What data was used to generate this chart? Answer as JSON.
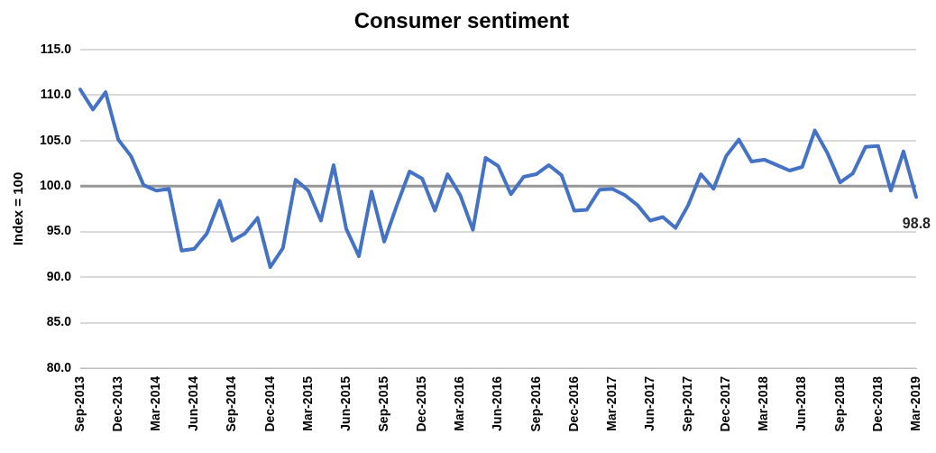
{
  "chart_data": {
    "type": "line",
    "title": "Consumer sentiment",
    "ylabel": "Index = 100",
    "categories": [
      "Sep-2013",
      null,
      null,
      "Dec-2013",
      null,
      null,
      "Mar-2014",
      null,
      null,
      "Jun-2014",
      null,
      null,
      "Sep-2014",
      null,
      null,
      "Dec-2014",
      null,
      null,
      "Mar-2015",
      null,
      null,
      "Jun-2015",
      null,
      null,
      "Sep-2015",
      null,
      null,
      "Dec-2015",
      null,
      null,
      "Mar-2016",
      null,
      null,
      "Jun-2016",
      null,
      null,
      "Sep-2016",
      null,
      null,
      "Dec-2016",
      null,
      null,
      "Mar-2017",
      null,
      null,
      "Jun-2017",
      null,
      null,
      "Sep-2017",
      null,
      null,
      "Dec-2017",
      null,
      null,
      "Mar-2018",
      null,
      null,
      "Jun-2018",
      null,
      null,
      "Sep-2018",
      null,
      null,
      "Dec-2018",
      null,
      null,
      "Mar-2019"
    ],
    "series": [
      {
        "color": "#4472c4",
        "values": [
          110.6,
          108.4,
          110.3,
          105.1,
          103.3,
          100.1,
          99.5,
          99.7,
          92.9,
          93.1,
          94.8,
          98.4,
          94.0,
          94.8,
          96.5,
          91.1,
          93.2,
          100.7,
          99.5,
          96.2,
          102.3,
          95.3,
          92.3,
          99.4,
          93.9,
          97.9,
          101.6,
          100.8,
          97.3,
          101.3,
          99.0,
          95.2,
          103.1,
          102.2,
          99.1,
          101.0,
          101.3,
          102.3,
          101.2,
          97.3,
          97.4,
          99.6,
          99.7,
          99.0,
          97.9,
          96.2,
          96.6,
          95.4,
          97.9,
          101.3,
          99.7,
          103.3,
          105.1,
          102.7,
          102.9,
          102.3,
          101.7,
          102.1,
          106.1,
          103.6,
          100.4,
          101.4,
          104.3,
          104.4,
          99.5,
          103.8,
          98.8
        ],
        "value_labels": [
          null,
          null,
          null,
          null,
          null,
          null,
          null,
          null,
          null,
          null,
          null,
          null,
          null,
          null,
          null,
          null,
          null,
          null,
          null,
          null,
          null,
          null,
          null,
          null,
          null,
          null,
          null,
          null,
          null,
          null,
          null,
          null,
          null,
          null,
          null,
          null,
          null,
          null,
          null,
          null,
          null,
          null,
          null,
          null,
          null,
          null,
          null,
          null,
          null,
          null,
          null,
          null,
          null,
          null,
          null,
          null,
          null,
          null,
          null,
          null,
          null,
          null,
          null,
          null,
          null,
          null,
          "98.8"
        ]
      }
    ],
    "ylim": [
      80,
      115
    ],
    "yticks": [
      {
        "value": 80,
        "label": "80.0"
      },
      {
        "value": 85,
        "label": "85.0"
      },
      {
        "value": 90,
        "label": "90.0"
      },
      {
        "value": 95,
        "label": "95.0"
      },
      {
        "value": 100,
        "label": "100.0"
      },
      {
        "value": 105,
        "label": "105.0"
      },
      {
        "value": 110,
        "label": "110.0"
      },
      {
        "value": 115,
        "label": "115.0"
      }
    ],
    "ref_lines": [
      {
        "axis": "y",
        "value": 100,
        "color": "#969696"
      }
    ],
    "grid": "y",
    "legend": false,
    "marker": "none",
    "line_style": "solid"
  }
}
